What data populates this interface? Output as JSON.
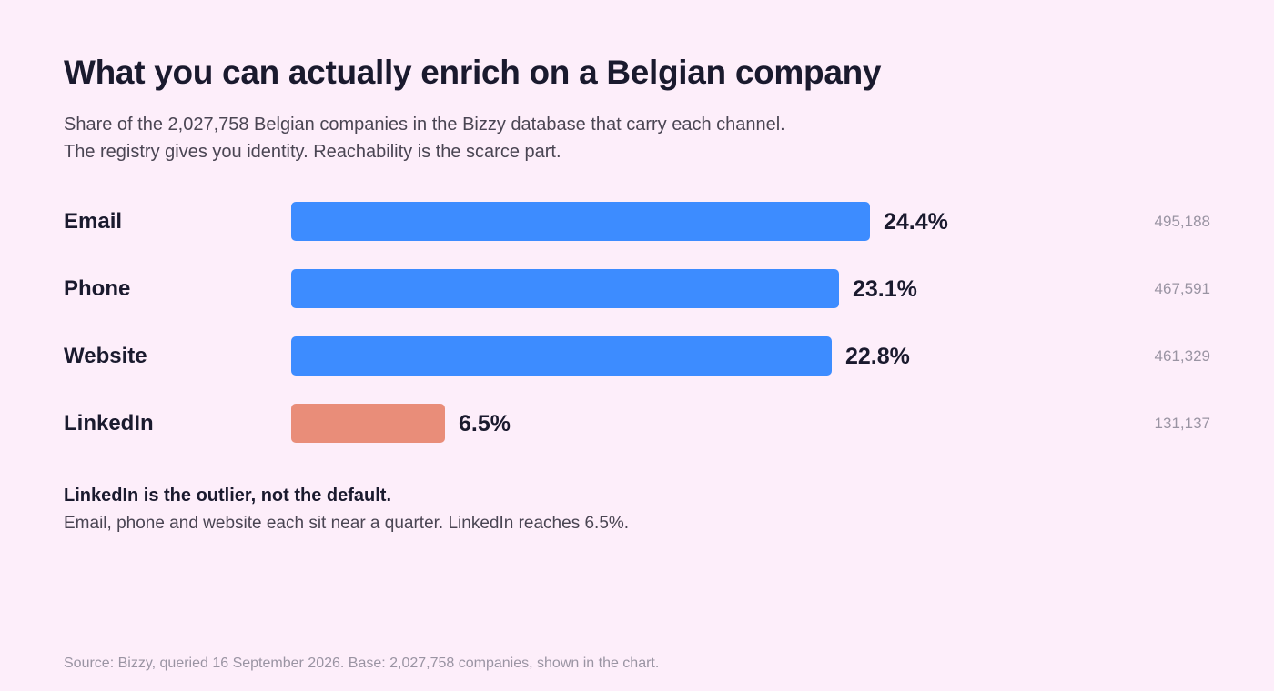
{
  "title": "What you can actually enrich on a Belgian company",
  "subtitle": [
    "Share of the 2,027,758 Belgian companies in the Bizzy database that carry each channel.",
    "The registry gives you identity. Reachability is the scarce part."
  ],
  "colors": {
    "primary": "#3d8cff",
    "highlight": "#e98d79",
    "background": "#fdeefa"
  },
  "chart_data": {
    "type": "bar",
    "orientation": "horizontal",
    "title": "What you can actually enrich on a Belgian company",
    "categories": [
      "Email",
      "Phone",
      "Website",
      "LinkedIn"
    ],
    "values": [
      24.4,
      23.1,
      22.8,
      6.5
    ],
    "value_labels": [
      "24.4%",
      "23.1%",
      "22.8%",
      "6.5%"
    ],
    "counts": [
      "495,188",
      "467,591",
      "461,329",
      "131,137"
    ],
    "highlight": [
      false,
      false,
      false,
      true
    ],
    "unit": "%",
    "xlim": [
      0,
      24.4
    ],
    "grid": false,
    "legend": "none"
  },
  "note": {
    "heading": "LinkedIn is the outlier, not the default.",
    "body": "Email, phone and website each sit near a quarter. LinkedIn reaches 6.5%."
  },
  "source": "Source: Bizzy, queried 16 September 2026. Base: 2,027,758 companies, shown in the chart."
}
